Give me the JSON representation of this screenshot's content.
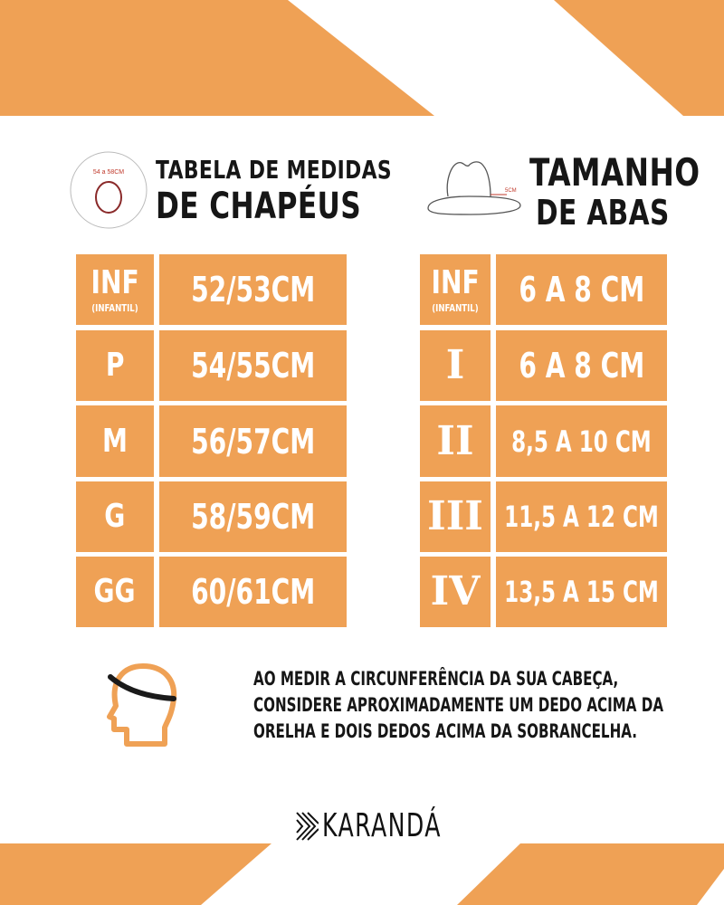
{
  "colors": {
    "accent": "#EFA155",
    "text": "#161616",
    "white": "#FFFFFF"
  },
  "left": {
    "icon": "hat-top-view-icon",
    "icon_label": "54 a 58CM",
    "title_line1": "TABELA DE MEDIDAS",
    "title_line2": "DE CHAPÉUS",
    "rows": [
      {
        "size": "INF",
        "sub": "(INFANTIL)",
        "value": "52/53CM"
      },
      {
        "size": "P",
        "value": "54/55CM"
      },
      {
        "size": "M",
        "value": "56/57CM"
      },
      {
        "size": "G",
        "value": "58/59CM"
      },
      {
        "size": "GG",
        "value": "60/61CM"
      }
    ]
  },
  "right": {
    "icon": "hat-side-view-icon",
    "icon_label": "5CM",
    "title_line1": "TAMANHO",
    "title_line2": "DE ABAS",
    "rows": [
      {
        "size": "INF",
        "sub": "(INFANTIL)",
        "value": "6 A 8 CM"
      },
      {
        "size": "I",
        "value": "6 A 8 CM"
      },
      {
        "size": "II",
        "value": "8,5 A 10 CM"
      },
      {
        "size": "III",
        "value": "11,5 A 12 CM"
      },
      {
        "size": "IV",
        "value": "13,5 A 15 CM"
      }
    ]
  },
  "note": {
    "icon": "head-measure-icon",
    "line1": "AO MEDIR A CIRCUNFERÊNCIA DA SUA CABEÇA,",
    "line2": "CONSIDERE APROXIMADAMENTE UM DEDO ACIMA DA",
    "line3": "ORELHA E DOIS DEDOS ACIMA DA SOBRANCELHA."
  },
  "brand": {
    "name": "KARANDÁ",
    "icon": "karanda-k-logo-icon"
  }
}
